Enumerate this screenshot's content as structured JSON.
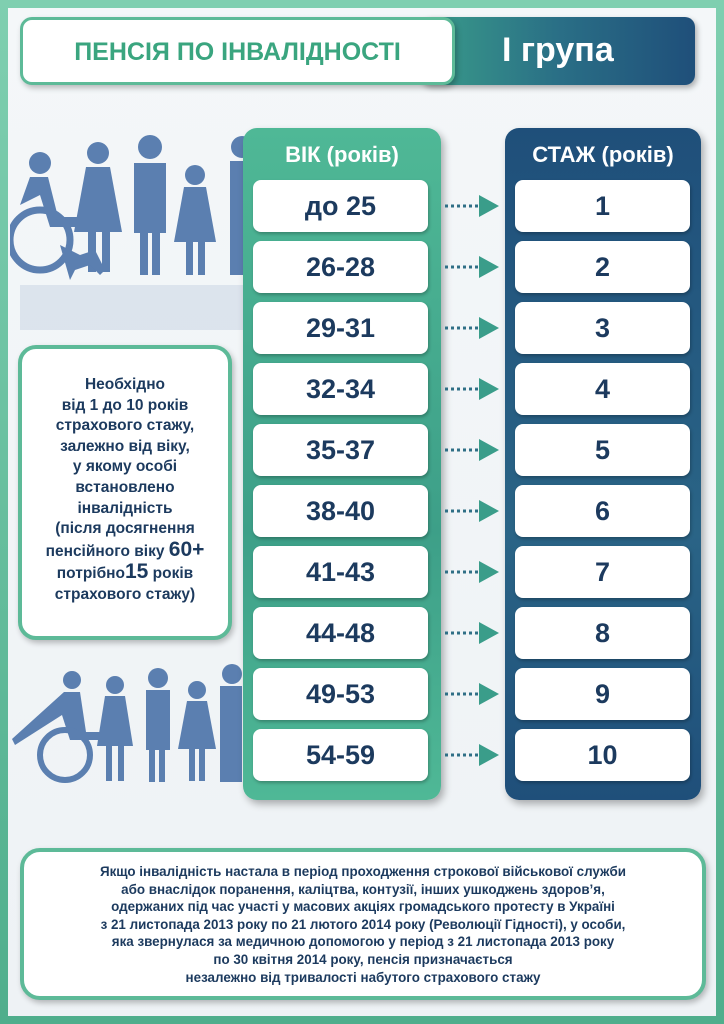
{
  "title": {
    "main": "ПЕНСІЯ ПО ІНВАЛІДНОСТІ",
    "group": "І група"
  },
  "colors": {
    "green": "#4fb896",
    "navy": "#1f4f7a",
    "text": "#1c3a5e",
    "people": "#5b7fb0"
  },
  "age_header": "ВІК (років)",
  "stazh_header": "СТАЖ (років)",
  "rows": [
    {
      "age": "до 25",
      "stazh": "1"
    },
    {
      "age": "26-28",
      "stazh": "2"
    },
    {
      "age": "29-31",
      "stazh": "3"
    },
    {
      "age": "32-34",
      "stazh": "4"
    },
    {
      "age": "35-37",
      "stazh": "5"
    },
    {
      "age": "38-40",
      "stazh": "6"
    },
    {
      "age": "41-43",
      "stazh": "7"
    },
    {
      "age": "44-48",
      "stazh": "8"
    },
    {
      "age": "49-53",
      "stazh": "9"
    },
    {
      "age": "54-59",
      "stazh": "10"
    }
  ],
  "info": {
    "lines": [
      "Необхідно",
      "від 1 до 10 років",
      "страхового стажу,",
      "залежно від віку,",
      "у якому особі",
      "встановлено",
      "інвалідність",
      "(після досягнення"
    ],
    "line9_a": "пенсійного віку ",
    "line9_big": "60+",
    "line10_a": "потрібно",
    "line10_big": "15",
    "line10_b": " років",
    "line11": "страхового стажу)"
  },
  "bottom_lines": [
    "Якщо інвалідність настала в період проходження строкової військової служби",
    "або внаслідок поранення, каліцтва, контузії, інших ушкоджень здоров’я,",
    "одержаних під час участі у масових акціях громадського протесту в Україні",
    "з 21 листопада 2013 року по 21 лютого 2014 року (Революції Гідності), у особи,",
    "яка звернулася  за медичною допомогою у період з 21 листопада 2013 року",
    "по 30 квітня 2014 року, пенсія призначається",
    "незалежно від тривалості набутого страхового стажу"
  ]
}
